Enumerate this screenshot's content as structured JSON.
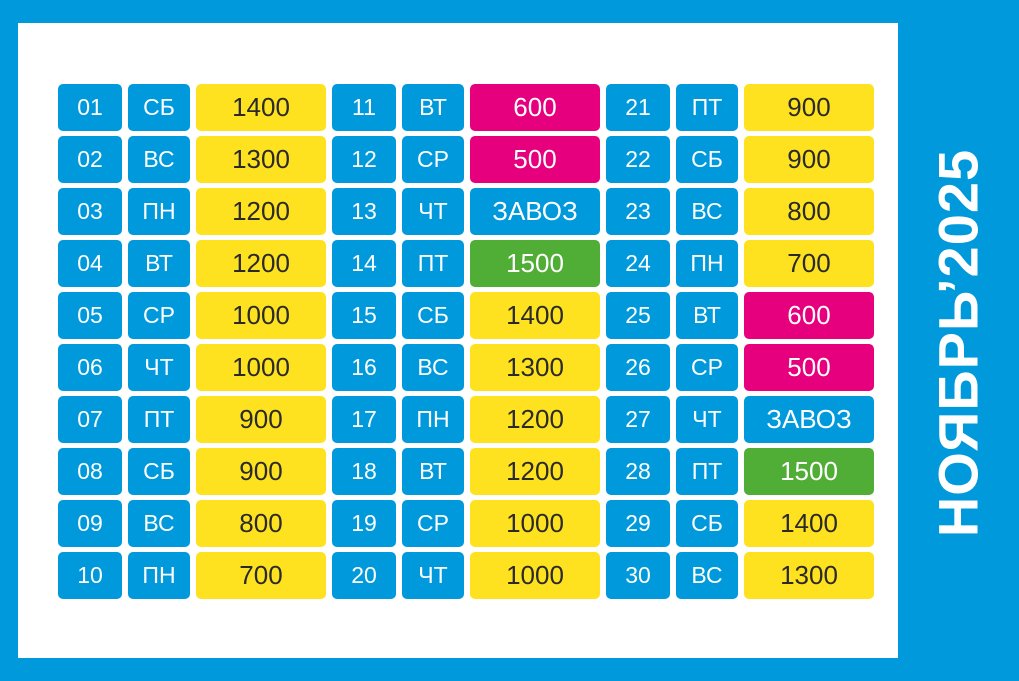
{
  "title": "НОЯБРЬ’2025",
  "colors": {
    "background": "#0099dc",
    "panel": "#ffffff",
    "yellow": "#ffe21f",
    "pink": "#e6007e",
    "green": "#50ad35",
    "blue": "#0099dc"
  },
  "columns": [
    [
      {
        "day": "01",
        "weekday": "СБ",
        "value": "1400",
        "color": "yellow"
      },
      {
        "day": "02",
        "weekday": "ВС",
        "value": "1300",
        "color": "yellow"
      },
      {
        "day": "03",
        "weekday": "ПН",
        "value": "1200",
        "color": "yellow"
      },
      {
        "day": "04",
        "weekday": "ВТ",
        "value": "1200",
        "color": "yellow"
      },
      {
        "day": "05",
        "weekday": "СР",
        "value": "1000",
        "color": "yellow"
      },
      {
        "day": "06",
        "weekday": "ЧТ",
        "value": "1000",
        "color": "yellow"
      },
      {
        "day": "07",
        "weekday": "ПТ",
        "value": "900",
        "color": "yellow"
      },
      {
        "day": "08",
        "weekday": "СБ",
        "value": "900",
        "color": "yellow"
      },
      {
        "day": "09",
        "weekday": "ВС",
        "value": "800",
        "color": "yellow"
      },
      {
        "day": "10",
        "weekday": "ПН",
        "value": "700",
        "color": "yellow"
      }
    ],
    [
      {
        "day": "11",
        "weekday": "ВТ",
        "value": "600",
        "color": "pink"
      },
      {
        "day": "12",
        "weekday": "СР",
        "value": "500",
        "color": "pink"
      },
      {
        "day": "13",
        "weekday": "ЧТ",
        "value": "ЗАВОЗ",
        "color": "blue"
      },
      {
        "day": "14",
        "weekday": "ПТ",
        "value": "1500",
        "color": "green"
      },
      {
        "day": "15",
        "weekday": "СБ",
        "value": "1400",
        "color": "yellow"
      },
      {
        "day": "16",
        "weekday": "ВС",
        "value": "1300",
        "color": "yellow"
      },
      {
        "day": "17",
        "weekday": "ПН",
        "value": "1200",
        "color": "yellow"
      },
      {
        "day": "18",
        "weekday": "ВТ",
        "value": "1200",
        "color": "yellow"
      },
      {
        "day": "19",
        "weekday": "СР",
        "value": "1000",
        "color": "yellow"
      },
      {
        "day": "20",
        "weekday": "ЧТ",
        "value": "1000",
        "color": "yellow"
      }
    ],
    [
      {
        "day": "21",
        "weekday": "ПТ",
        "value": "900",
        "color": "yellow"
      },
      {
        "day": "22",
        "weekday": "СБ",
        "value": "900",
        "color": "yellow"
      },
      {
        "day": "23",
        "weekday": "ВС",
        "value": "800",
        "color": "yellow"
      },
      {
        "day": "24",
        "weekday": "ПН",
        "value": "700",
        "color": "yellow"
      },
      {
        "day": "25",
        "weekday": "ВТ",
        "value": "600",
        "color": "pink"
      },
      {
        "day": "26",
        "weekday": "СР",
        "value": "500",
        "color": "pink"
      },
      {
        "day": "27",
        "weekday": "ЧТ",
        "value": "ЗАВОЗ",
        "color": "blue"
      },
      {
        "day": "28",
        "weekday": "ПТ",
        "value": "1500",
        "color": "green"
      },
      {
        "day": "29",
        "weekday": "СБ",
        "value": "1400",
        "color": "yellow"
      },
      {
        "day": "30",
        "weekday": "ВС",
        "value": "1300",
        "color": "yellow"
      }
    ]
  ]
}
